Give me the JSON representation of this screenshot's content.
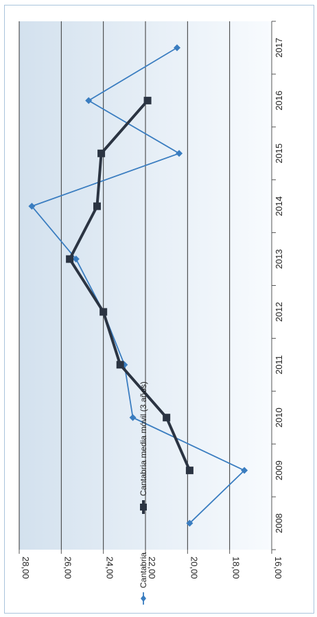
{
  "chart_data": {
    "type": "line",
    "orientation": "rotated-90-clockwise",
    "categories": [
      "2008",
      "2009",
      "2010",
      "2011",
      "2012",
      "2013",
      "2014",
      "2015",
      "2016",
      "2017"
    ],
    "series": [
      {
        "name": "Cantabria",
        "color": "#3a7dc0",
        "marker": "diamond",
        "values": [
          19.9,
          17.3,
          22.6,
          23.0,
          24.0,
          25.3,
          27.4,
          20.4,
          24.7,
          20.5
        ]
      },
      {
        "name": "Cantabria media móvil (3 años)",
        "color": "#2b3442",
        "marker": "square",
        "values": [
          null,
          19.9,
          21.0,
          23.2,
          24.0,
          25.6,
          24.3,
          24.1,
          21.9,
          null
        ]
      }
    ],
    "ylim": [
      16,
      28
    ],
    "yticks": [
      "16,00",
      "18,00",
      "20,00",
      "22,00",
      "24,00",
      "26,00",
      "28,00"
    ],
    "grid": true,
    "legend_position": "bottom"
  }
}
